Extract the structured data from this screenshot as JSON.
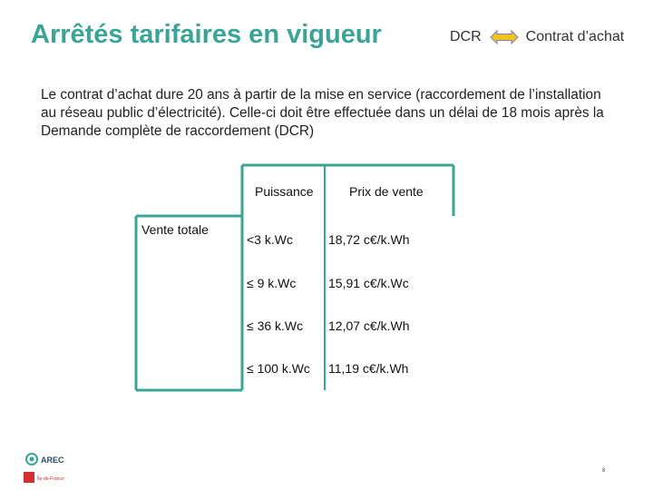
{
  "slide": {
    "title": "Arrêtés tarifaires en vigueur",
    "flow": {
      "from": "DCR",
      "to": "Contrat d’achat",
      "arrow_color": "#f0c419",
      "arrow_stroke": "#7a7ad0"
    },
    "intro": "Le contrat d’achat dure 20 ans à partir de la mise en service (raccordement de l’installation au réseau public d’électricité). Celle-ci doit être effectuée dans un délai de 18 mois après la Demande complète de raccordement (DCR)",
    "accent_color": "#3aa596",
    "table": {
      "row_label": "Vente totale",
      "headers": {
        "power": "Puissance",
        "price": "Prix de vente"
      },
      "rows": [
        {
          "power": "<3 k.Wc",
          "price": "18,72 c€/k.Wh"
        },
        {
          "power": "≤ 9 k.Wc",
          "price": "15,91 c€/k.Wc"
        },
        {
          "power": "≤ 36 k.Wc",
          "price": "12,07 c€/k.Wh"
        },
        {
          "power": "≤ 100 k.Wc",
          "price": "11,19 c€/k.Wh"
        }
      ]
    },
    "footer": {
      "logo_main": "AREC",
      "logo_region": "Île-de-France",
      "page_number": "8"
    }
  }
}
